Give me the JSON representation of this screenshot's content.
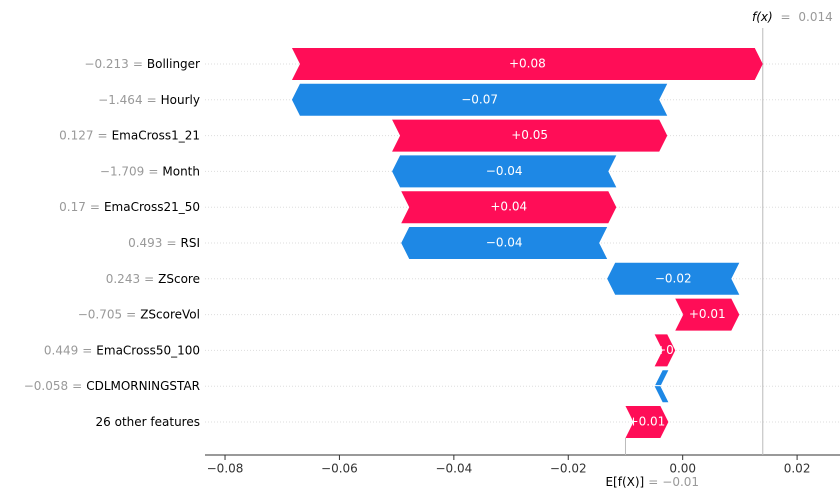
{
  "chart_data": {
    "type": "waterfall",
    "categories": [
      "Bollinger",
      "Hourly",
      "EmaCross1_21",
      "Month",
      "EmaCross21_50",
      "RSI",
      "ZScore",
      "ZScoreVol",
      "EmaCross50_100",
      "CDLMORNINGSTAR",
      "26 other features"
    ],
    "feature_values": [
      {
        "value": -0.213,
        "label": "−0.213"
      },
      {
        "value": -1.464,
        "label": "−1.464"
      },
      {
        "value": 0.127,
        "label": "0.127"
      },
      {
        "value": -1.709,
        "label": "−1.709"
      },
      {
        "value": 0.17,
        "label": "0.17"
      },
      {
        "value": 0.493,
        "label": "0.493"
      },
      {
        "value": 0.243,
        "label": "0.243"
      },
      {
        "value": -0.705,
        "label": "−0.705"
      },
      {
        "value": 0.449,
        "label": "0.449"
      },
      {
        "value": -0.058,
        "label": "−0.058"
      },
      null
    ],
    "value_separator": "=",
    "values": [
      0.0823,
      -0.0656,
      0.0481,
      -0.0392,
      0.0376,
      -0.036,
      -0.0231,
      0.0112,
      0.0036,
      -0.0024,
      0.0075
    ],
    "value_labels": [
      "+0.08",
      "−0.07",
      "+0.05",
      "−0.04",
      "+0.04",
      "−0.04",
      "−0.02",
      "+0.01",
      "+0",
      "−0",
      "+0.01"
    ],
    "positive_color": "#ff0d57",
    "negative_color": "#1e88e5",
    "base": {
      "label": "E[f(X)]",
      "value": -0.01,
      "value_label": "−0.01"
    },
    "output": {
      "label": "f(x)",
      "value": 0.014,
      "value_label": "0.014"
    },
    "xlim": [
      -0.0835,
      0.0275
    ],
    "xticks": [
      {
        "value": -0.08,
        "label": "−0.08"
      },
      {
        "value": -0.06,
        "label": "−0.06"
      },
      {
        "value": -0.04,
        "label": "−0.04"
      },
      {
        "value": -0.02,
        "label": "−0.02"
      },
      {
        "value": 0,
        "label": "0.00"
      },
      0.02
    ]
  }
}
